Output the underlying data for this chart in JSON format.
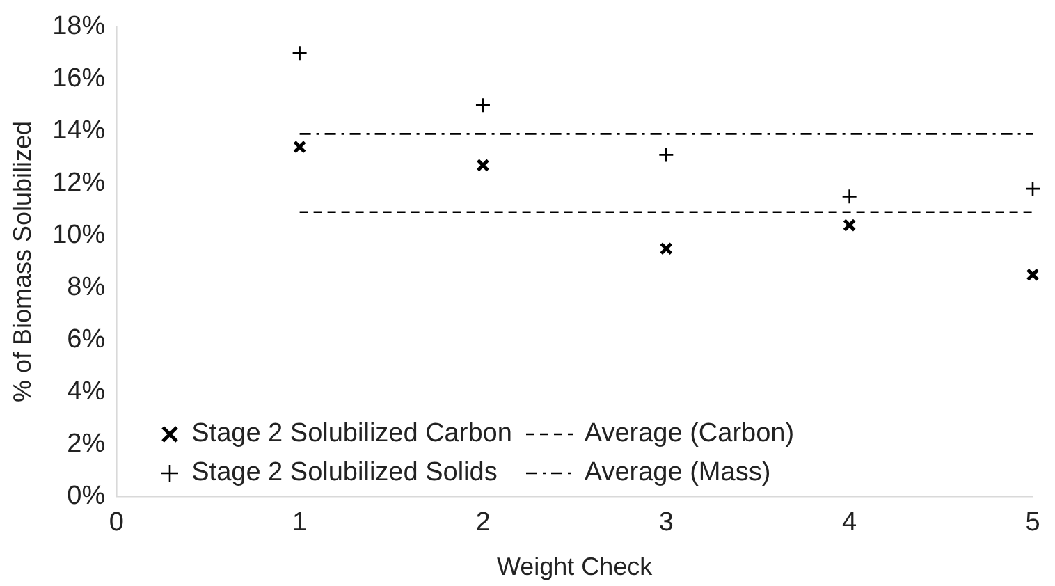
{
  "chart_data": {
    "type": "scatter",
    "xlabel": "Weight Check",
    "ylabel": "% of Biomass Solubilized",
    "xlim": [
      0,
      5
    ],
    "xticks": [
      0,
      1,
      2,
      3,
      4,
      5
    ],
    "ylim": [
      0,
      18
    ],
    "yticks": [
      {
        "value": 0,
        "label": "0%"
      },
      {
        "value": 2,
        "label": "2%"
      },
      {
        "value": 4,
        "label": "4%"
      },
      {
        "value": 6,
        "label": "6%"
      },
      {
        "value": 8,
        "label": "8%"
      },
      {
        "value": 10,
        "label": "10%"
      },
      {
        "value": 12,
        "label": "12%"
      },
      {
        "value": 14,
        "label": "14%"
      },
      {
        "value": 16,
        "label": "16%"
      },
      {
        "value": 18,
        "label": "18%"
      }
    ],
    "grid": false,
    "legend": "bottom left",
    "series": [
      {
        "name": "Stage 2 Solubilized Carbon",
        "type": "scatter",
        "marker": "x",
        "color": "#000000",
        "x": [
          1,
          2,
          3,
          4,
          5
        ],
        "values": [
          13.4,
          12.7,
          9.5,
          10.4,
          8.5
        ]
      },
      {
        "name": "Stage 2 Solubilized Solids",
        "type": "scatter",
        "marker": "cross",
        "color": "#000000",
        "x": [
          1,
          2,
          3,
          4,
          5
        ],
        "values": [
          17.0,
          15.0,
          13.1,
          11.5,
          11.8
        ]
      },
      {
        "name": "Average (Carbon)",
        "type": "line",
        "line_style": "dashed",
        "marker": "none",
        "color": "#000000",
        "x": [
          1,
          5
        ],
        "values": [
          10.9,
          10.9
        ]
      },
      {
        "name": "Average (Mass)",
        "type": "line",
        "line_style": "dashdot",
        "marker": "none",
        "color": "#000000",
        "x": [
          1,
          5
        ],
        "values": [
          13.9,
          13.9
        ]
      }
    ]
  }
}
